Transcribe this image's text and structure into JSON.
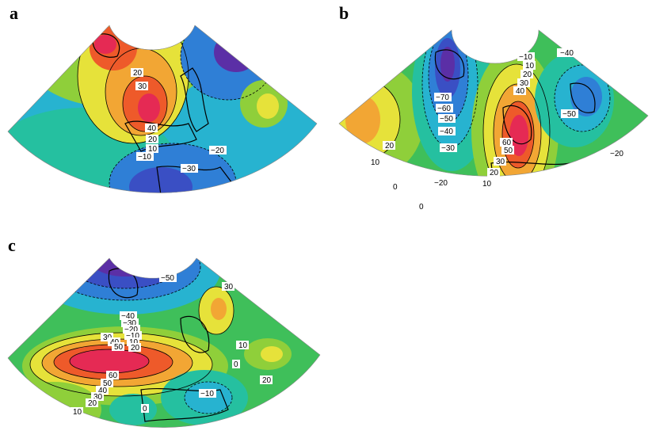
{
  "figure": {
    "panels": [
      {
        "id": "a",
        "letter": "a",
        "contour_labels": [
          "20",
          "30",
          "40",
          "20",
          "10",
          "−10",
          "−20",
          "−30"
        ]
      },
      {
        "id": "b",
        "letter": "b",
        "contour_labels": [
          "−10",
          "−40",
          "−70",
          "−60",
          "−50",
          "−40",
          "−30",
          "−20",
          "−50",
          "20",
          "10",
          "0",
          "0",
          "10",
          "20",
          "30",
          "40",
          "60",
          "50",
          "30",
          "20",
          "10",
          "−20"
        ]
      },
      {
        "id": "c",
        "letter": "c",
        "contour_labels": [
          "−50",
          "30",
          "−40",
          "−30",
          "−20",
          "−10",
          "10",
          "20",
          "30",
          "40",
          "50",
          "60",
          "50",
          "40",
          "30",
          "20",
          "10",
          "0",
          "10",
          "20",
          "0",
          "−10"
        ]
      }
    ],
    "colorscale": [
      "#5b2fa6",
      "#3a4fc4",
      "#2f7fd6",
      "#27b3d0",
      "#25c0a0",
      "#3fbf5a",
      "#8fcf3a",
      "#e6e23a",
      "#f2a634",
      "#ee5a2a",
      "#e52a54",
      "#d41a8a"
    ]
  }
}
